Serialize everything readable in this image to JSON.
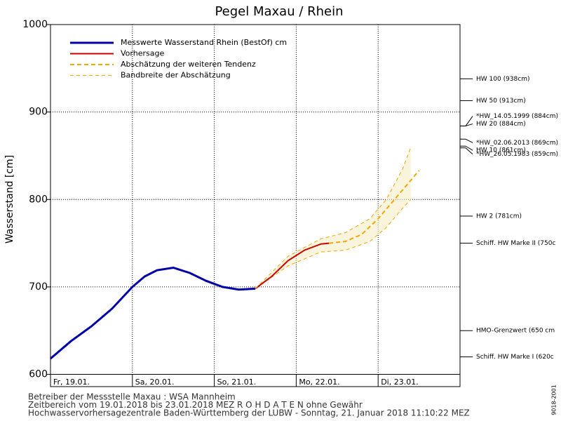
{
  "chart_data": {
    "type": "line",
    "title": "Pegel Maxau / Rhein",
    "y_label": "Wasserstand [cm]",
    "xlim": [
      0,
      5
    ],
    "xticks": [
      {
        "value": 0,
        "label": "Fr, 19.01."
      },
      {
        "value": 1,
        "label": "Sa, 20.01."
      },
      {
        "value": 2,
        "label": "So, 21.01."
      },
      {
        "value": 3,
        "label": "Mo, 22.01."
      },
      {
        "value": 4,
        "label": "Di, 23.01."
      }
    ],
    "ylim": [
      586,
      1000
    ],
    "yticks": [
      600,
      700,
      800,
      900,
      1000
    ],
    "grid": true,
    "series": [
      {
        "name": "Messwerte Wasserstand Rhein (BestOf) cm",
        "color": "#0000aa",
        "x": [
          0,
          0.25,
          0.5,
          0.75,
          1.0,
          1.15,
          1.3,
          1.5,
          1.7,
          1.9,
          2.1,
          2.3,
          2.5
        ],
        "values": [
          618,
          638,
          655,
          675,
          700,
          712,
          719,
          722,
          716,
          707,
          700,
          697,
          698
        ]
      },
      {
        "name": "Vorhersage",
        "color": "#cc0000",
        "x": [
          2.5,
          2.7,
          2.9,
          3.1,
          3.3,
          3.4
        ],
        "values": [
          698,
          712,
          730,
          742,
          749,
          750
        ]
      },
      {
        "name": "Abschätzung der weiteren Tendenz",
        "color": "#f0a800",
        "x": [
          3.4,
          3.6,
          3.8,
          4.0,
          4.2,
          4.4,
          4.5
        ],
        "values": [
          750,
          752,
          760,
          778,
          800,
          822,
          833
        ]
      },
      {
        "name": "Bandbreite der Abschätzung",
        "color": "#f0a800",
        "x": [
          2.5,
          2.9,
          3.3,
          3.6,
          3.9,
          4.1,
          4.3,
          4.4
        ],
        "values": [
          698,
          735,
          755,
          762,
          778,
          800,
          835,
          860
        ],
        "lower": [
          698,
          724,
          740,
          742,
          752,
          768,
          790,
          800
        ]
      }
    ],
    "annotations": [
      {
        "label": "HW 100 (938cm)",
        "value": 938
      },
      {
        "label": "HW 50 (913cm)",
        "value": 913
      },
      {
        "label": "*HW_14.05.1999 (884cm)",
        "value": 884
      },
      {
        "label": "HW 20 (884cm)",
        "value": 884
      },
      {
        "label": "*HW_02.06.2013 (869cm)",
        "value": 869
      },
      {
        "label": "HW 10 (861cm)",
        "value": 861
      },
      {
        "label": "*HW_26.05.1983 (859cm)",
        "value": 859
      },
      {
        "label": "HW 2 (781cm)",
        "value": 781
      },
      {
        "label": "Schiff. HW Marke II (750c",
        "value": 750
      },
      {
        "label": "HMO-Grenzwert (650 cm",
        "value": 650
      },
      {
        "label": "Schiff. HW Marke I (620c",
        "value": 620
      }
    ],
    "footer": [
      "Betreiber der Messstelle Maxau : WSA Mannheim",
      "Zeitbereich vom 19.01.2018 bis 23.01.2018    MEZ    R O H D A T E N ohne Gewähr",
      "Hochwasservorhersagezentrale Baden-Württemberg der LUBW - Sonntag, 21. Januar 2018 11:10:22 MEZ"
    ],
    "side_text": "9018-2001"
  }
}
